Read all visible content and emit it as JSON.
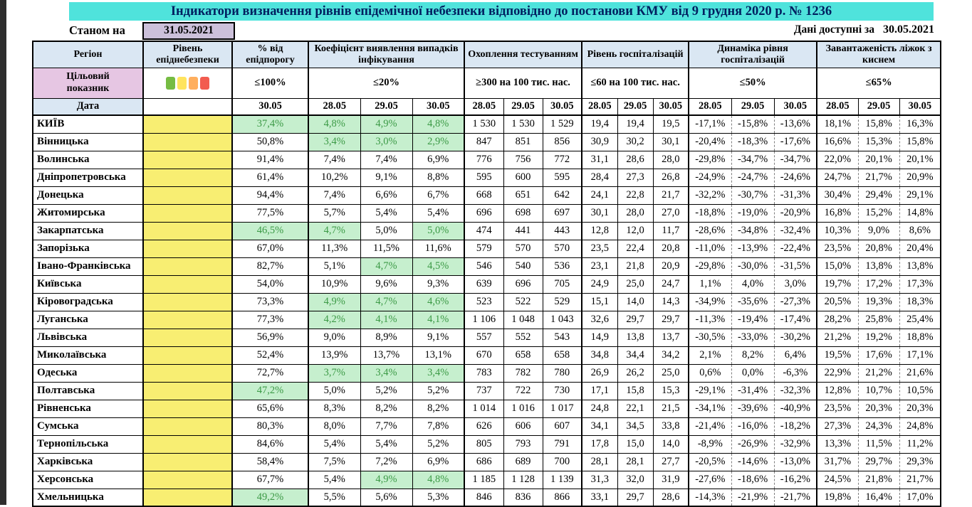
{
  "page": {
    "title": "Індикатори визначення рівнів епідемічної небезпеки відповідно до постанови КМУ від 9 грудня 2020 р. № 1236",
    "as_of_label": "Станом на",
    "as_of_date": "31.05.2021",
    "available_label": "Дані доступні за",
    "available_date": "30.05.2021"
  },
  "colors": {
    "title_bg": "#4FE3DC",
    "title_text": "#002060",
    "header_bg": "#DAE7F3",
    "target_label_bg": "#E6C6E3",
    "asof_box_bg": "#CCC0DA",
    "level_bg": "#F8EE72",
    "good_bg": "#C6EFCE",
    "good_text": "#3C9A46"
  },
  "legend": {
    "colors": [
      "#76BC43",
      "#FFE45E",
      "#FFAF5E",
      "#F25C50"
    ],
    "names": [
      "green-level",
      "yellow-level",
      "orange-level",
      "red-level"
    ]
  },
  "table": {
    "headers": {
      "region": "Регіон",
      "level": "Рівень епіднебезпеки",
      "pct": "% від епідпорогу",
      "coef": "Коефіцієнт виявлення випадків інфікування",
      "test": "Охоплення тестуванням",
      "hosp": "Рівень госпіталізацій",
      "dyn": "Динаміка рівня госпіталізацій",
      "beds": "Завантаженість ліжок з киснем"
    },
    "targets": {
      "label": "Цільовий показник",
      "pct": "≤100%",
      "coef": "≤20%",
      "test": "≥300 на 100 тис. нас.",
      "hosp": "≤60 на 100 тис. нас.",
      "dyn": "≤50%",
      "beds": "≤65%"
    },
    "date_row": {
      "label": "Дата",
      "pct_date": "30.05",
      "dates": [
        "28.05",
        "29.05",
        "30.05"
      ]
    },
    "rows": [
      {
        "region": "КИЇВ",
        "pct": "37,4%",
        "pct_good": true,
        "coef": [
          "4,8%",
          "4,9%",
          "4,8%"
        ],
        "coef_good": [
          true,
          true,
          true
        ],
        "test": [
          "1 530",
          "1 530",
          "1 529"
        ],
        "hosp": [
          "19,4",
          "19,4",
          "19,5"
        ],
        "dyn": [
          "-17,1%",
          "-15,8%",
          "-13,6%"
        ],
        "beds": [
          "18,1%",
          "15,8%",
          "16,3%"
        ]
      },
      {
        "region": "Вінницька",
        "pct": "50,8%",
        "pct_good": false,
        "coef": [
          "3,4%",
          "3,0%",
          "2,9%"
        ],
        "coef_good": [
          true,
          true,
          true
        ],
        "test": [
          "847",
          "851",
          "856"
        ],
        "hosp": [
          "30,9",
          "30,2",
          "30,1"
        ],
        "dyn": [
          "-20,4%",
          "-18,3%",
          "-17,6%"
        ],
        "beds": [
          "16,6%",
          "15,3%",
          "15,8%"
        ]
      },
      {
        "region": "Волинська",
        "pct": "91,4%",
        "pct_good": false,
        "coef": [
          "7,4%",
          "7,4%",
          "6,9%"
        ],
        "coef_good": [
          false,
          false,
          false
        ],
        "test": [
          "776",
          "756",
          "772"
        ],
        "hosp": [
          "31,1",
          "28,6",
          "28,0"
        ],
        "dyn": [
          "-29,8%",
          "-34,7%",
          "-34,7%"
        ],
        "beds": [
          "22,0%",
          "20,1%",
          "20,1%"
        ]
      },
      {
        "region": "Дніпропетровська",
        "pct": "61,4%",
        "pct_good": false,
        "coef": [
          "10,2%",
          "9,1%",
          "8,8%"
        ],
        "coef_good": [
          false,
          false,
          false
        ],
        "test": [
          "595",
          "600",
          "595"
        ],
        "hosp": [
          "28,4",
          "27,3",
          "26,8"
        ],
        "dyn": [
          "-24,9%",
          "-24,7%",
          "-24,6%"
        ],
        "beds": [
          "24,7%",
          "21,7%",
          "20,9%"
        ]
      },
      {
        "region": "Донецька",
        "pct": "94,4%",
        "pct_good": false,
        "coef": [
          "7,4%",
          "6,6%",
          "6,7%"
        ],
        "coef_good": [
          false,
          false,
          false
        ],
        "test": [
          "668",
          "651",
          "642"
        ],
        "hosp": [
          "24,1",
          "22,8",
          "21,7"
        ],
        "dyn": [
          "-32,2%",
          "-30,7%",
          "-31,3%"
        ],
        "beds": [
          "30,4%",
          "29,4%",
          "29,1%"
        ]
      },
      {
        "region": "Житомирська",
        "pct": "77,5%",
        "pct_good": false,
        "coef": [
          "5,7%",
          "5,4%",
          "5,4%"
        ],
        "coef_good": [
          false,
          false,
          false
        ],
        "test": [
          "696",
          "698",
          "697"
        ],
        "hosp": [
          "30,1",
          "28,0",
          "27,0"
        ],
        "dyn": [
          "-18,8%",
          "-19,0%",
          "-20,9%"
        ],
        "beds": [
          "16,8%",
          "15,2%",
          "14,8%"
        ]
      },
      {
        "region": "Закарпатська",
        "pct": "46,5%",
        "pct_good": true,
        "coef": [
          "4,7%",
          "5,0%",
          "5,0%"
        ],
        "coef_good": [
          true,
          false,
          true
        ],
        "test": [
          "474",
          "441",
          "443"
        ],
        "hosp": [
          "12,8",
          "12,0",
          "11,7"
        ],
        "dyn": [
          "-28,6%",
          "-34,8%",
          "-32,4%"
        ],
        "beds": [
          "10,3%",
          "9,0%",
          "8,6%"
        ]
      },
      {
        "region": "Запорізька",
        "pct": "67,0%",
        "pct_good": false,
        "coef": [
          "11,3%",
          "11,5%",
          "11,6%"
        ],
        "coef_good": [
          false,
          false,
          false
        ],
        "test": [
          "579",
          "570",
          "570"
        ],
        "hosp": [
          "23,5",
          "22,4",
          "20,8"
        ],
        "dyn": [
          "-11,0%",
          "-13,9%",
          "-22,4%"
        ],
        "beds": [
          "23,5%",
          "20,8%",
          "20,4%"
        ]
      },
      {
        "region": "Івано-Франківська",
        "pct": "82,7%",
        "pct_good": false,
        "coef": [
          "5,1%",
          "4,7%",
          "4,5%"
        ],
        "coef_good": [
          false,
          true,
          true
        ],
        "test": [
          "546",
          "540",
          "536"
        ],
        "hosp": [
          "23,1",
          "21,8",
          "20,9"
        ],
        "dyn": [
          "-29,8%",
          "-30,0%",
          "-31,5%"
        ],
        "beds": [
          "15,0%",
          "13,8%",
          "13,8%"
        ]
      },
      {
        "region": "Київська",
        "pct": "54,0%",
        "pct_good": false,
        "coef": [
          "10,9%",
          "9,6%",
          "9,3%"
        ],
        "coef_good": [
          false,
          false,
          false
        ],
        "test": [
          "639",
          "696",
          "705"
        ],
        "hosp": [
          "24,9",
          "25,0",
          "24,7"
        ],
        "dyn": [
          "1,1%",
          "4,0%",
          "3,0%"
        ],
        "beds": [
          "19,7%",
          "17,2%",
          "17,3%"
        ]
      },
      {
        "region": "Кіровоградська",
        "pct": "73,3%",
        "pct_good": false,
        "coef": [
          "4,9%",
          "4,7%",
          "4,6%"
        ],
        "coef_good": [
          true,
          true,
          true
        ],
        "test": [
          "523",
          "522",
          "529"
        ],
        "hosp": [
          "15,1",
          "14,0",
          "14,3"
        ],
        "dyn": [
          "-34,9%",
          "-35,6%",
          "-27,3%"
        ],
        "beds": [
          "20,5%",
          "19,3%",
          "18,3%"
        ]
      },
      {
        "region": "Луганська",
        "pct": "77,3%",
        "pct_good": false,
        "coef": [
          "4,2%",
          "4,1%",
          "4,1%"
        ],
        "coef_good": [
          true,
          true,
          true
        ],
        "test": [
          "1 106",
          "1 048",
          "1 043"
        ],
        "hosp": [
          "32,6",
          "29,7",
          "29,7"
        ],
        "dyn": [
          "-11,3%",
          "-19,4%",
          "-17,4%"
        ],
        "beds": [
          "28,2%",
          "25,8%",
          "25,4%"
        ]
      },
      {
        "region": "Львівська",
        "pct": "56,9%",
        "pct_good": false,
        "coef": [
          "9,0%",
          "8,9%",
          "9,1%"
        ],
        "coef_good": [
          false,
          false,
          false
        ],
        "test": [
          "557",
          "552",
          "543"
        ],
        "hosp": [
          "14,9",
          "13,8",
          "13,7"
        ],
        "dyn": [
          "-30,5%",
          "-33,0%",
          "-30,2%"
        ],
        "beds": [
          "21,2%",
          "19,2%",
          "18,8%"
        ]
      },
      {
        "region": "Миколаївська",
        "pct": "52,4%",
        "pct_good": false,
        "coef": [
          "13,9%",
          "13,7%",
          "13,1%"
        ],
        "coef_good": [
          false,
          false,
          false
        ],
        "test": [
          "670",
          "658",
          "658"
        ],
        "hosp": [
          "34,8",
          "34,4",
          "34,2"
        ],
        "dyn": [
          "2,1%",
          "8,2%",
          "6,4%"
        ],
        "beds": [
          "19,5%",
          "17,6%",
          "17,1%"
        ]
      },
      {
        "region": "Одеська",
        "pct": "72,7%",
        "pct_good": false,
        "coef": [
          "3,7%",
          "3,4%",
          "3,4%"
        ],
        "coef_good": [
          true,
          true,
          true
        ],
        "test": [
          "783",
          "782",
          "780"
        ],
        "hosp": [
          "26,9",
          "26,2",
          "25,0"
        ],
        "dyn": [
          "0,6%",
          "0,0%",
          "-6,3%"
        ],
        "beds": [
          "22,9%",
          "21,2%",
          "21,6%"
        ]
      },
      {
        "region": "Полтавська",
        "pct": "47,2%",
        "pct_good": true,
        "coef": [
          "5,0%",
          "5,2%",
          "5,2%"
        ],
        "coef_good": [
          false,
          false,
          false
        ],
        "test": [
          "737",
          "722",
          "730"
        ],
        "hosp": [
          "17,1",
          "15,8",
          "15,3"
        ],
        "dyn": [
          "-29,1%",
          "-31,4%",
          "-32,3%"
        ],
        "beds": [
          "12,8%",
          "10,7%",
          "10,5%"
        ]
      },
      {
        "region": "Рівненська",
        "pct": "65,6%",
        "pct_good": false,
        "coef": [
          "8,3%",
          "8,2%",
          "8,2%"
        ],
        "coef_good": [
          false,
          false,
          false
        ],
        "test": [
          "1 014",
          "1 016",
          "1 017"
        ],
        "hosp": [
          "24,8",
          "22,1",
          "21,5"
        ],
        "dyn": [
          "-34,1%",
          "-39,6%",
          "-40,9%"
        ],
        "beds": [
          "23,5%",
          "20,3%",
          "20,3%"
        ]
      },
      {
        "region": "Сумська",
        "pct": "80,3%",
        "pct_good": false,
        "coef": [
          "8,0%",
          "7,7%",
          "7,8%"
        ],
        "coef_good": [
          false,
          false,
          false
        ],
        "test": [
          "626",
          "606",
          "607"
        ],
        "hosp": [
          "34,1",
          "34,5",
          "33,8"
        ],
        "dyn": [
          "-21,4%",
          "-16,0%",
          "-18,2%"
        ],
        "beds": [
          "27,3%",
          "24,3%",
          "24,8%"
        ]
      },
      {
        "region": "Тернопільська",
        "pct": "84,6%",
        "pct_good": false,
        "coef": [
          "5,4%",
          "5,4%",
          "5,2%"
        ],
        "coef_good": [
          false,
          false,
          false
        ],
        "test": [
          "805",
          "793",
          "791"
        ],
        "hosp": [
          "17,8",
          "15,0",
          "14,0"
        ],
        "dyn": [
          "-8,9%",
          "-26,9%",
          "-32,9%"
        ],
        "beds": [
          "13,3%",
          "11,5%",
          "11,2%"
        ]
      },
      {
        "region": "Харківська",
        "pct": "58,4%",
        "pct_good": false,
        "coef": [
          "7,5%",
          "7,2%",
          "6,9%"
        ],
        "coef_good": [
          false,
          false,
          false
        ],
        "test": [
          "686",
          "689",
          "700"
        ],
        "hosp": [
          "28,1",
          "28,1",
          "27,7"
        ],
        "dyn": [
          "-20,5%",
          "-14,6%",
          "-13,0%"
        ],
        "beds": [
          "31,7%",
          "29,7%",
          "29,3%"
        ]
      },
      {
        "region": "Херсонська",
        "pct": "67,7%",
        "pct_good": false,
        "coef": [
          "5,4%",
          "4,9%",
          "4,8%"
        ],
        "coef_good": [
          false,
          true,
          true
        ],
        "test": [
          "1 185",
          "1 128",
          "1 139"
        ],
        "hosp": [
          "31,3",
          "32,0",
          "31,9"
        ],
        "dyn": [
          "-27,6%",
          "-18,6%",
          "-16,2%"
        ],
        "beds": [
          "24,5%",
          "21,8%",
          "21,7%"
        ]
      },
      {
        "region": "Хмельницька",
        "pct": "49,2%",
        "pct_good": true,
        "coef": [
          "5,5%",
          "5,6%",
          "5,3%"
        ],
        "coef_good": [
          false,
          false,
          false
        ],
        "test": [
          "846",
          "836",
          "866"
        ],
        "hosp": [
          "33,1",
          "29,7",
          "28,6"
        ],
        "dyn": [
          "-14,3%",
          "-21,9%",
          "-21,7%"
        ],
        "beds": [
          "19,8%",
          "16,4%",
          "17,0%"
        ]
      }
    ]
  }
}
